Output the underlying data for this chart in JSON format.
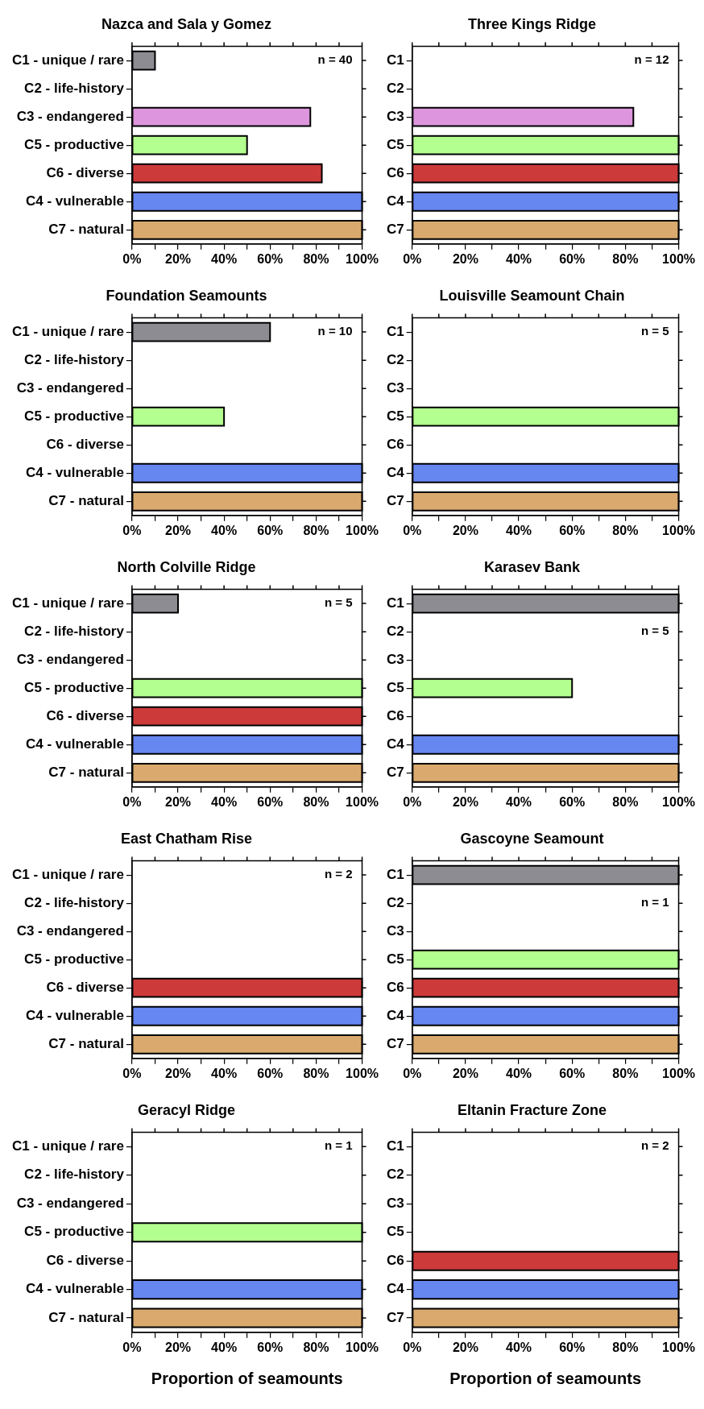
{
  "chart_data": [
    {
      "type": "bar",
      "orientation": "horizontal",
      "title": "Nazca and Sala y Gomez",
      "categories": [
        "C1 - unique / rare",
        "C2 - life-history",
        "C3 - endangered",
        "C5 - productive",
        "C6 - diverse",
        "C4 - vulnerable",
        "C7 - natural"
      ],
      "values": [
        10,
        0,
        77.5,
        50,
        82.5,
        100,
        100
      ],
      "colors": [
        "#8e8c93",
        "#000000",
        "#dd96dd",
        "#b3ff8f",
        "#cc3a3a",
        "#6686f0",
        "#d9a96e"
      ],
      "xlim": [
        0,
        100
      ],
      "xticks": [
        {
          "value": 0,
          "label": "0%"
        },
        {
          "value": 10,
          "label": null
        },
        {
          "value": 20,
          "label": "20%"
        },
        {
          "value": 30,
          "label": null
        },
        {
          "value": 40,
          "label": "40%"
        },
        {
          "value": 50,
          "label": null
        },
        {
          "value": 60,
          "label": "60%"
        },
        {
          "value": 70,
          "label": null
        },
        {
          "value": 80,
          "label": "80%"
        },
        {
          "value": 90,
          "label": null
        },
        {
          "value": 100,
          "label": "100%"
        }
      ],
      "annotations": [
        "n = 40"
      ]
    },
    {
      "type": "bar",
      "orientation": "horizontal",
      "title": "Three Kings Ridge",
      "categories": [
        "C1",
        "C2",
        "C3",
        "C5",
        "C6",
        "C4",
        "C7"
      ],
      "values": [
        0,
        0,
        83,
        100,
        100,
        100,
        100
      ],
      "colors": [
        "#8e8c93",
        "#000000",
        "#dd96dd",
        "#b3ff8f",
        "#cc3a3a",
        "#6686f0",
        "#d9a96e"
      ],
      "xlim": [
        0,
        100
      ],
      "xticks": [
        {
          "value": 0,
          "label": "0%"
        },
        {
          "value": 10,
          "label": null
        },
        {
          "value": 20,
          "label": "20%"
        },
        {
          "value": 30,
          "label": null
        },
        {
          "value": 40,
          "label": "40%"
        },
        {
          "value": 50,
          "label": null
        },
        {
          "value": 60,
          "label": "60%"
        },
        {
          "value": 70,
          "label": null
        },
        {
          "value": 80,
          "label": "80%"
        },
        {
          "value": 90,
          "label": null
        },
        {
          "value": 100,
          "label": "100%"
        }
      ],
      "annotations": [
        "n = 12"
      ]
    },
    {
      "type": "bar",
      "orientation": "horizontal",
      "title": "Foundation Seamounts",
      "categories": [
        "C1 - unique / rare",
        "C2 - life-history",
        "C3 - endangered",
        "C5 - productive",
        "C6 - diverse",
        "C4 - vulnerable",
        "C7 - natural"
      ],
      "values": [
        60,
        0,
        0,
        40,
        0,
        100,
        100
      ],
      "colors": [
        "#8e8c93",
        "#000000",
        "#dd96dd",
        "#b3ff8f",
        "#cc3a3a",
        "#6686f0",
        "#d9a96e"
      ],
      "xlim": [
        0,
        100
      ],
      "xticks": [
        {
          "value": 0,
          "label": "0%"
        },
        {
          "value": 10,
          "label": null
        },
        {
          "value": 20,
          "label": "20%"
        },
        {
          "value": 30,
          "label": null
        },
        {
          "value": 40,
          "label": "40%"
        },
        {
          "value": 50,
          "label": null
        },
        {
          "value": 60,
          "label": "60%"
        },
        {
          "value": 70,
          "label": null
        },
        {
          "value": 80,
          "label": "80%"
        },
        {
          "value": 90,
          "label": null
        },
        {
          "value": 100,
          "label": "100%"
        }
      ],
      "annotations": [
        "n = 10"
      ]
    },
    {
      "type": "bar",
      "orientation": "horizontal",
      "title": "Louisville Seamount Chain",
      "categories": [
        "C1",
        "C2",
        "C3",
        "C5",
        "C6",
        "C4",
        "C7"
      ],
      "values": [
        0,
        0,
        0,
        100,
        0,
        100,
        100
      ],
      "colors": [
        "#8e8c93",
        "#000000",
        "#dd96dd",
        "#b3ff8f",
        "#cc3a3a",
        "#6686f0",
        "#d9a96e"
      ],
      "xlim": [
        0,
        100
      ],
      "xticks": [
        {
          "value": 0,
          "label": "0%"
        },
        {
          "value": 10,
          "label": null
        },
        {
          "value": 20,
          "label": "20%"
        },
        {
          "value": 30,
          "label": null
        },
        {
          "value": 40,
          "label": "40%"
        },
        {
          "value": 50,
          "label": null
        },
        {
          "value": 60,
          "label": "60%"
        },
        {
          "value": 70,
          "label": null
        },
        {
          "value": 80,
          "label": "80%"
        },
        {
          "value": 90,
          "label": null
        },
        {
          "value": 100,
          "label": "100%"
        }
      ],
      "annotations": [
        "n = 5"
      ]
    },
    {
      "type": "bar",
      "orientation": "horizontal",
      "title": "North Colville Ridge",
      "categories": [
        "C1 - unique / rare",
        "C2 - life-history",
        "C3 - endangered",
        "C5 - productive",
        "C6 - diverse",
        "C4 - vulnerable",
        "C7 - natural"
      ],
      "values": [
        20,
        0,
        0,
        100,
        100,
        100,
        100
      ],
      "colors": [
        "#8e8c93",
        "#000000",
        "#dd96dd",
        "#b3ff8f",
        "#cc3a3a",
        "#6686f0",
        "#d9a96e"
      ],
      "xlim": [
        0,
        100
      ],
      "xticks": [
        {
          "value": 0,
          "label": "0%"
        },
        {
          "value": 10,
          "label": null
        },
        {
          "value": 20,
          "label": "20%"
        },
        {
          "value": 30,
          "label": null
        },
        {
          "value": 40,
          "label": "40%"
        },
        {
          "value": 50,
          "label": null
        },
        {
          "value": 60,
          "label": "60%"
        },
        {
          "value": 70,
          "label": null
        },
        {
          "value": 80,
          "label": "80%"
        },
        {
          "value": 90,
          "label": null
        },
        {
          "value": 100,
          "label": "100%"
        }
      ],
      "annotations": [
        "n = 5"
      ]
    },
    {
      "type": "bar",
      "orientation": "horizontal",
      "title": "Karasev Bank",
      "categories": [
        "C1",
        "C2",
        "C3",
        "C5",
        "C6",
        "C4",
        "C7"
      ],
      "values": [
        100,
        0,
        0,
        60,
        0,
        100,
        100
      ],
      "colors": [
        "#8e8c93",
        "#000000",
        "#dd96dd",
        "#b3ff8f",
        "#cc3a3a",
        "#6686f0",
        "#d9a96e"
      ],
      "xlim": [
        0,
        100
      ],
      "xticks": [
        {
          "value": 0,
          "label": "0%"
        },
        {
          "value": 10,
          "label": null
        },
        {
          "value": 20,
          "label": "20%"
        },
        {
          "value": 30,
          "label": null
        },
        {
          "value": 40,
          "label": "40%"
        },
        {
          "value": 50,
          "label": null
        },
        {
          "value": 60,
          "label": "60%"
        },
        {
          "value": 70,
          "label": null
        },
        {
          "value": 80,
          "label": "80%"
        },
        {
          "value": 90,
          "label": null
        },
        {
          "value": 100,
          "label": "100%"
        }
      ],
      "annotations": [
        "n = 5"
      ]
    },
    {
      "type": "bar",
      "orientation": "horizontal",
      "title": "East Chatham Rise",
      "categories": [
        "C1 - unique / rare",
        "C2 - life-history",
        "C3 - endangered",
        "C5 - productive",
        "C6 - diverse",
        "C4 - vulnerable",
        "C7 - natural"
      ],
      "values": [
        0,
        0,
        0,
        0,
        100,
        100,
        100
      ],
      "colors": [
        "#8e8c93",
        "#000000",
        "#dd96dd",
        "#b3ff8f",
        "#cc3a3a",
        "#6686f0",
        "#d9a96e"
      ],
      "xlim": [
        0,
        100
      ],
      "xticks": [
        {
          "value": 0,
          "label": "0%"
        },
        {
          "value": 10,
          "label": null
        },
        {
          "value": 20,
          "label": "20%"
        },
        {
          "value": 30,
          "label": null
        },
        {
          "value": 40,
          "label": "40%"
        },
        {
          "value": 50,
          "label": null
        },
        {
          "value": 60,
          "label": "60%"
        },
        {
          "value": 70,
          "label": null
        },
        {
          "value": 80,
          "label": "80%"
        },
        {
          "value": 90,
          "label": null
        },
        {
          "value": 100,
          "label": "100%"
        }
      ],
      "annotations": [
        "n = 2"
      ]
    },
    {
      "type": "bar",
      "orientation": "horizontal",
      "title": "Gascoyne Seamount",
      "categories": [
        "C1",
        "C2",
        "C3",
        "C5",
        "C6",
        "C4",
        "C7"
      ],
      "values": [
        100,
        0,
        0,
        100,
        100,
        100,
        100
      ],
      "colors": [
        "#8e8c93",
        "#000000",
        "#dd96dd",
        "#b3ff8f",
        "#cc3a3a",
        "#6686f0",
        "#d9a96e"
      ],
      "xlim": [
        0,
        100
      ],
      "xticks": [
        {
          "value": 0,
          "label": "0%"
        },
        {
          "value": 10,
          "label": null
        },
        {
          "value": 20,
          "label": "20%"
        },
        {
          "value": 30,
          "label": null
        },
        {
          "value": 40,
          "label": "40%"
        },
        {
          "value": 50,
          "label": null
        },
        {
          "value": 60,
          "label": "60%"
        },
        {
          "value": 70,
          "label": null
        },
        {
          "value": 80,
          "label": "80%"
        },
        {
          "value": 90,
          "label": null
        },
        {
          "value": 100,
          "label": "100%"
        }
      ],
      "annotations": [
        "n = 1"
      ]
    },
    {
      "type": "bar",
      "orientation": "horizontal",
      "title": "Geracyl Ridge",
      "categories": [
        "C1 - unique / rare",
        "C2 - life-history",
        "C3 - endangered",
        "C5 - productive",
        "C6 - diverse",
        "C4 - vulnerable",
        "C7 - natural"
      ],
      "values": [
        0,
        0,
        0,
        100,
        0,
        100,
        100
      ],
      "colors": [
        "#8e8c93",
        "#000000",
        "#dd96dd",
        "#b3ff8f",
        "#cc3a3a",
        "#6686f0",
        "#d9a96e"
      ],
      "xlim": [
        0,
        100
      ],
      "xticks": [
        {
          "value": 0,
          "label": "0%"
        },
        {
          "value": 10,
          "label": null
        },
        {
          "value": 20,
          "label": "20%"
        },
        {
          "value": 30,
          "label": null
        },
        {
          "value": 40,
          "label": "40%"
        },
        {
          "value": 50,
          "label": null
        },
        {
          "value": 60,
          "label": "60%"
        },
        {
          "value": 70,
          "label": null
        },
        {
          "value": 80,
          "label": "80%"
        },
        {
          "value": 90,
          "label": null
        },
        {
          "value": 100,
          "label": "100%"
        }
      ],
      "annotations": [
        "n = 1"
      ],
      "xlabel": "Proportion of seamounts"
    },
    {
      "type": "bar",
      "orientation": "horizontal",
      "title": "Eltanin Fracture Zone",
      "categories": [
        "C1",
        "C2",
        "C3",
        "C5",
        "C6",
        "C4",
        "C7"
      ],
      "values": [
        0,
        0,
        0,
        0,
        100,
        100,
        100
      ],
      "colors": [
        "#8e8c93",
        "#000000",
        "#dd96dd",
        "#b3ff8f",
        "#cc3a3a",
        "#6686f0",
        "#d9a96e"
      ],
      "xlim": [
        0,
        100
      ],
      "xticks": [
        {
          "value": 0,
          "label": "0%"
        },
        {
          "value": 10,
          "label": null
        },
        {
          "value": 20,
          "label": "20%"
        },
        {
          "value": 30,
          "label": null
        },
        {
          "value": 40,
          "label": "40%"
        },
        {
          "value": 50,
          "label": null
        },
        {
          "value": 60,
          "label": "60%"
        },
        {
          "value": 70,
          "label": null
        },
        {
          "value": 80,
          "label": "80%"
        },
        {
          "value": 90,
          "label": null
        },
        {
          "value": 100,
          "label": "100%"
        }
      ],
      "annotations": [
        "n = 2"
      ],
      "xlabel": "Proportion of seamounts"
    }
  ]
}
